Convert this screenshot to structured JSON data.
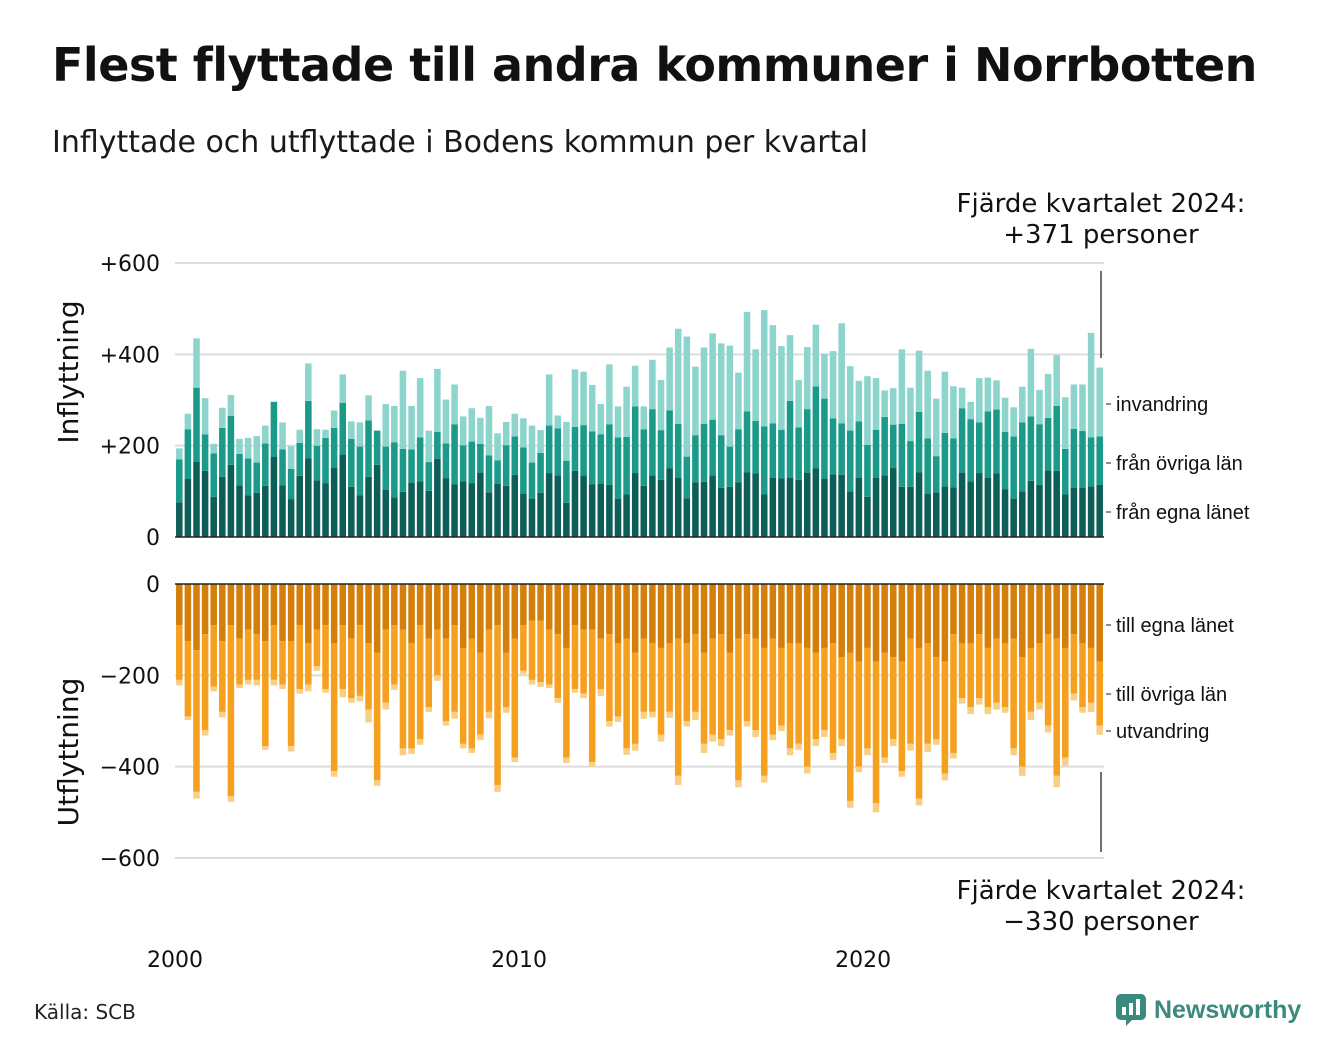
{
  "title": "Flest flyttade till andra kommuner i Norrbotten",
  "subtitle": "Inflyttade och utflyttade i Bodens kommun per kvartal",
  "source": "Källa: SCB",
  "brand": "Newsworthy",
  "colors": {
    "in_local": "#0d5e57",
    "in_other": "#1b9a8a",
    "in_immig": "#8dd5cc",
    "out_local": "#d47f0b",
    "out_other": "#f6a01f",
    "out_emig": "#f8cf85",
    "grid": "#dddddd",
    "axis": "#222222",
    "brand": "#3a8a7e"
  },
  "chart_data": {
    "type": "bar",
    "stacked": true,
    "period": "quarter",
    "x_tick_labels": [
      "2000",
      "2010",
      "2020"
    ],
    "panels": [
      {
        "name": "inflow",
        "ylabel": "Inflyttning",
        "ylim": [
          0,
          650
        ],
        "y_ticks": [
          0,
          200,
          400,
          600
        ],
        "y_tick_labels": [
          "0",
          "+200",
          "+400",
          "+600"
        ],
        "annotation": [
          "Fjärde kvartalet 2024:",
          "+371 personer"
        ],
        "series": [
          {
            "name": "från egna länet",
            "values": [
              76,
              127,
              165,
              145,
              88,
              132,
              158,
              113,
              91,
              97,
              112,
              176,
              113,
              83,
              134,
              172,
              124,
              118,
              152,
              181,
              110,
              91,
              132,
              158,
              103,
              87,
              99,
              119,
              122,
              101,
              171,
              129,
              115,
              122,
              118,
              141,
              98,
              116,
              112,
              136,
              95,
              84,
              97,
              140,
              135,
              75,
              145,
              135,
              115,
              116,
              114,
              84,
              93,
              140,
              112,
              135,
              125,
              150,
              130,
              85,
              120,
              121,
              135,
              108,
              110,
              120,
              142,
              139,
              93,
              130,
              128,
              130,
              125,
              141,
              150,
              127,
              137,
              136,
              100,
              130,
              88,
              130,
              135,
              151,
              110,
              110,
              142,
              95,
              98,
              111,
              109,
              141,
              122,
              140,
              130,
              139,
              104,
              84,
              100,
              123,
              114,
              146,
              145,
              93,
              108,
              108,
              111,
              114
            ]
          },
          {
            "name": "från övriga län",
            "values": [
              94,
              109,
              162,
              80,
              95,
              107,
              107,
              69,
              81,
              66,
              93,
              120,
              79,
              66,
              72,
              126,
              76,
              99,
              87,
              113,
              105,
              107,
              123,
              75,
              95,
              120,
              94,
              73,
              96,
              63,
              59,
              76,
              132,
              79,
              91,
              63,
              81,
              52,
              89,
              84,
              101,
              79,
              87,
              104,
              103,
              92,
              96,
              110,
              116,
              109,
              133,
              134,
              126,
              146,
              124,
              145,
              109,
              127,
              118,
              91,
              103,
              127,
              122,
              115,
              88,
              116,
              133,
              115,
              149,
              119,
              107,
              168,
              115,
              139,
              180,
              176,
              123,
              113,
              133,
              123,
              114,
              105,
              128,
              95,
              138,
              100,
              132,
              121,
              79,
              117,
              107,
              141,
              136,
              111,
              145,
              140,
              126,
              136,
              151,
              141,
              133,
              115,
              142,
              100,
              129,
              124,
              107,
              106
            ]
          },
          {
            "name": "invandring",
            "values": [
              24,
              34,
              108,
              79,
              21,
              44,
              46,
              33,
              45,
              58,
              39,
              0,
              59,
              50,
              29,
              82,
              36,
              18,
              38,
              62,
              38,
              53,
              55,
              0,
              93,
              80,
              171,
              95,
              130,
              69,
              138,
              96,
              87,
              63,
              73,
              57,
              108,
              59,
              51,
              50,
              64,
              81,
              50,
              112,
              28,
              85,
              126,
              117,
              102,
              66,
              131,
              68,
              110,
              89,
              50,
              108,
              110,
              138,
              208,
              263,
              150,
              167,
              189,
              201,
              221,
              124,
              218,
              157,
              255,
              215,
              183,
              144,
              104,
              136,
              135,
              98,
              147,
              219,
              141,
              89,
              150,
              113,
              58,
              80,
              163,
              117,
              134,
              148,
              126,
              134,
              114,
              45,
              38,
              97,
              74,
              64,
              75,
              64,
              78,
              148,
              75,
              96,
              111,
              113,
              97,
              102,
              229,
              151
            ]
          }
        ]
      },
      {
        "name": "outflow",
        "ylabel": "Utflyttning",
        "ylim": [
          -650,
          0
        ],
        "y_ticks": [
          0,
          -200,
          -400,
          -600
        ],
        "y_tick_labels": [
          "0",
          "−200",
          "−400",
          "−600"
        ],
        "annotation": [
          "Fjärde kvartalet 2024:",
          "−330 personer"
        ],
        "series": [
          {
            "name": "till egna länet",
            "values": [
              -90,
              -125,
              -145,
              -110,
              -90,
              -125,
              -90,
              -120,
              -100,
              -110,
              -125,
              -90,
              -125,
              -125,
              -90,
              -130,
              -100,
              -90,
              -130,
              -90,
              -120,
              -90,
              -130,
              -150,
              -100,
              -90,
              -100,
              -130,
              -90,
              -120,
              -100,
              -120,
              -90,
              -140,
              -120,
              -150,
              -100,
              -90,
              -150,
              -120,
              -90,
              -80,
              -80,
              -100,
              -110,
              -140,
              -90,
              -100,
              -100,
              -120,
              -110,
              -130,
              -120,
              -150,
              -120,
              -130,
              -140,
              -130,
              -120,
              -130,
              -110,
              -150,
              -120,
              -110,
              -150,
              -120,
              -110,
              -120,
              -140,
              -120,
              -140,
              -130,
              -130,
              -140,
              -150,
              -140,
              -130,
              -160,
              -150,
              -170,
              -140,
              -170,
              -150,
              -160,
              -170,
              -120,
              -140,
              -130,
              -160,
              -170,
              -110,
              -130,
              -130,
              -110,
              -140,
              -120,
              -130,
              -120,
              -160,
              -140,
              -130,
              -110,
              -120,
              -140,
              -110,
              -130,
              -140,
              -170
            ]
          },
          {
            "name": "till övriga län",
            "values": [
              -120,
              -165,
              -310,
              -210,
              -135,
              -155,
              -375,
              -100,
              -110,
              -100,
              -230,
              -120,
              -95,
              -230,
              -140,
              -90,
              -80,
              -140,
              -280,
              -140,
              -130,
              -155,
              -145,
              -280,
              -160,
              -130,
              -260,
              -230,
              -250,
              -150,
              -100,
              -180,
              -190,
              -210,
              -240,
              -180,
              -180,
              -350,
              -120,
              -260,
              -100,
              -130,
              -135,
              -120,
              -140,
              -240,
              -140,
              -140,
              -290,
              -110,
              -190,
              -160,
              -240,
              -200,
              -160,
              -150,
              -190,
              -150,
              -300,
              -170,
              -170,
              -200,
              -210,
              -230,
              -170,
              -310,
              -190,
              -200,
              -280,
              -210,
              -170,
              -230,
              -220,
              -260,
              -190,
              -180,
              -240,
              -180,
              -325,
              -230,
              -220,
              -310,
              -230,
              -180,
              -240,
              -230,
              -330,
              -220,
              -180,
              -245,
              -260,
              -120,
              -140,
              -140,
              -130,
              -140,
              -140,
              -240,
              -240,
              -140,
              -130,
              -200,
              -300,
              -240,
              -130,
              -140,
              -120,
              -140
            ]
          },
          {
            "name": "utvandring",
            "values": [
              -12,
              -8,
              -15,
              -12,
              -10,
              -12,
              -12,
              -8,
              -10,
              -12,
              -8,
              -12,
              -10,
              -12,
              -10,
              -15,
              -10,
              -8,
              -12,
              -18,
              -10,
              -12,
              -28,
              -12,
              -15,
              -12,
              -15,
              -12,
              -12,
              -10,
              -12,
              -10,
              -15,
              -10,
              -10,
              -12,
              -14,
              -15,
              -12,
              -10,
              -8,
              -10,
              -10,
              -8,
              -10,
              -12,
              -8,
              -10,
              -10,
              -15,
              -12,
              -12,
              -14,
              -15,
              -15,
              -12,
              -15,
              -13,
              -20,
              -12,
              -18,
              -20,
              -15,
              -15,
              -12,
              -15,
              -12,
              -15,
              -15,
              -12,
              -12,
              -15,
              -13,
              -15,
              -15,
              -15,
              -15,
              -15,
              -15,
              -12,
              -15,
              -20,
              -12,
              -15,
              -12,
              -15,
              -15,
              -18,
              -12,
              -15,
              -12,
              -12,
              -15,
              -14,
              -15,
              -15,
              -12,
              -15,
              -20,
              -18,
              -15,
              -15,
              -25,
              -18,
              -15,
              -12,
              -20,
              -20
            ]
          }
        ]
      }
    ]
  }
}
